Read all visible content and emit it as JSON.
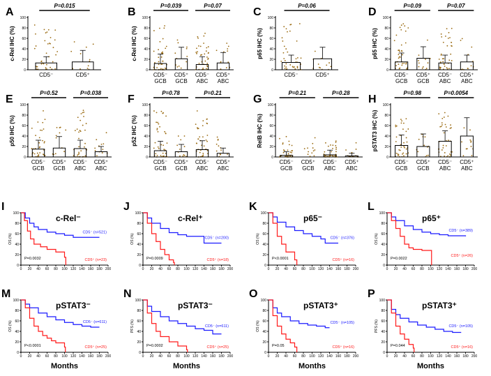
{
  "figure": {
    "x_axis_title": "Months",
    "colors": {
      "scatter": "#9a6a10",
      "cd5_neg": "#1a1aff",
      "cd5_pos": "#ff1a1a"
    }
  },
  "chart_data": [
    {
      "id": "A",
      "type": "bar",
      "panel_label": "A",
      "ylabel": "c-Rel IHC (%)",
      "categories": [
        "CD5⁻",
        "CD5⁺"
      ],
      "values": [
        13,
        15
      ],
      "sd": [
        12,
        22
      ],
      "ylim": [
        0,
        100
      ],
      "comparisons": [
        {
          "from": 0,
          "to": 1,
          "text": "P=0.015"
        }
      ]
    },
    {
      "id": "B",
      "type": "bar",
      "panel_label": "B",
      "ylabel": "c-Rel IHC (%)",
      "categories": [
        "CD5⁻ GCB",
        "CD5⁺ GCB",
        "CD5⁻ ABC",
        "CD5⁺ ABC"
      ],
      "values": [
        12,
        21,
        10,
        13
      ],
      "sd": [
        18,
        22,
        15,
        20
      ],
      "ylim": [
        0,
        100
      ],
      "comparisons": [
        {
          "from": 0,
          "to": 1,
          "text": "P=0.039"
        },
        {
          "from": 2,
          "to": 3,
          "text": "P=0.07"
        }
      ]
    },
    {
      "id": "C",
      "type": "bar",
      "panel_label": "C",
      "ylabel": "p65 IHC (%)",
      "categories": [
        "CD5⁻",
        "CD5⁺"
      ],
      "values": [
        14,
        21
      ],
      "sd": [
        14,
        22
      ],
      "ylim": [
        0,
        100
      ],
      "comparisons": [
        {
          "from": 0,
          "to": 1,
          "text": "P=0.06"
        }
      ]
    },
    {
      "id": "D",
      "type": "bar",
      "panel_label": "D",
      "ylabel": "p65 IHC (%)",
      "categories": [
        "CD5⁻ GCB",
        "CD5⁺ GCB",
        "CD5⁻ ABC",
        "CD5⁺ ABC"
      ],
      "values": [
        15,
        22,
        13,
        15
      ],
      "sd": [
        17,
        22,
        15,
        13
      ],
      "ylim": [
        0,
        100
      ],
      "comparisons": [
        {
          "from": 0,
          "to": 1,
          "text": "P=0.09"
        },
        {
          "from": 2,
          "to": 3,
          "text": "P=0.07"
        }
      ]
    },
    {
      "id": "E",
      "type": "bar",
      "panel_label": "E",
      "ylabel": "p50 IHC (%)",
      "categories": [
        "CD5⁻ GCB",
        "CD5⁺ GCB",
        "CD5⁻ ABC",
        "CD5⁺ ABC"
      ],
      "values": [
        15,
        17,
        16,
        10
      ],
      "sd": [
        17,
        22,
        16,
        10
      ],
      "ylim": [
        0,
        100
      ],
      "comparisons": [
        {
          "from": 0,
          "to": 1,
          "text": "P=0.52"
        },
        {
          "from": 2,
          "to": 3,
          "text": "P=0.038"
        }
      ]
    },
    {
      "id": "F",
      "type": "bar",
      "panel_label": "F",
      "ylabel": "p52 IHC (%)",
      "categories": [
        "CD5⁻ GCB",
        "CD5⁺ GCB",
        "CD5⁻ ABC",
        "CD5⁺ ABC"
      ],
      "values": [
        12,
        10,
        14,
        7
      ],
      "sd": [
        18,
        14,
        17,
        10
      ],
      "ylim": [
        0,
        100
      ],
      "comparisons": [
        {
          "from": 0,
          "to": 1,
          "text": "P=0.78"
        },
        {
          "from": 2,
          "to": 3,
          "text": "P=0.21"
        }
      ]
    },
    {
      "id": "G",
      "type": "bar",
      "panel_label": "G",
      "ylabel": "RelB IHC (%)",
      "categories": [
        "CD5⁻ GCB",
        "CD5⁺ GCB",
        "CD5⁻ ABC",
        "CD5⁺ ABC"
      ],
      "values": [
        3,
        0,
        4,
        2
      ],
      "sd": [
        7,
        0,
        9,
        5
      ],
      "ylim": [
        0,
        100
      ],
      "comparisons": [
        {
          "from": 0,
          "to": 1,
          "text": "P=0.21"
        },
        {
          "from": 2,
          "to": 3,
          "text": "P=0.28"
        }
      ]
    },
    {
      "id": "H",
      "type": "bar",
      "panel_label": "H",
      "ylabel": "pSTAT3 IHC (%)",
      "categories": [
        "CD5⁻ GCB",
        "CD5⁺ GCB",
        "CD5⁻ ABC",
        "CD5⁺ ABC"
      ],
      "values": [
        22,
        20,
        30,
        40
      ],
      "sd": [
        20,
        24,
        20,
        35
      ],
      "ylim": [
        0,
        100
      ],
      "comparisons": [
        {
          "from": 0,
          "to": 1,
          "text": "P=0.98"
        },
        {
          "from": 2,
          "to": 3,
          "text": "P=0.0054"
        }
      ]
    },
    {
      "id": "I",
      "type": "line",
      "panel_label": "I",
      "title": "c-Rel⁻",
      "ylabel": "OS (%)",
      "xlim": [
        0,
        200
      ],
      "ylim": [
        0,
        100
      ],
      "series": [
        {
          "name": "CD5⁻ (n=521)",
          "color": "#1a1aff",
          "x": [
            0,
            10,
            20,
            30,
            40,
            60,
            80,
            100,
            120,
            140,
            180
          ],
          "y": [
            100,
            90,
            80,
            73,
            68,
            63,
            60,
            57,
            53,
            53,
            53
          ]
        },
        {
          "name": "CD5⁺ (n=23)",
          "color": "#ff1a1a",
          "x": [
            0,
            8,
            15,
            22,
            30,
            45,
            60,
            80,
            100,
            103
          ],
          "y": [
            100,
            85,
            65,
            50,
            40,
            35,
            30,
            25,
            15,
            0
          ]
        }
      ],
      "p_value": "P=0.0032"
    },
    {
      "id": "J",
      "type": "line",
      "panel_label": "J",
      "title": "c-Rel⁺",
      "ylabel": "OS (%)",
      "xlim": [
        0,
        200
      ],
      "ylim": [
        0,
        100
      ],
      "series": [
        {
          "name": "CD5⁻ (n=200)",
          "color": "#1a1aff",
          "x": [
            0,
            10,
            20,
            40,
            60,
            80,
            100,
            120,
            140,
            150,
            180
          ],
          "y": [
            100,
            90,
            80,
            70,
            62,
            58,
            55,
            55,
            42,
            42,
            42
          ]
        },
        {
          "name": "CD5⁺ (n=18)",
          "color": "#ff1a1a",
          "x": [
            0,
            10,
            20,
            30,
            40,
            50,
            60,
            70,
            72
          ],
          "y": [
            100,
            80,
            60,
            45,
            30,
            20,
            10,
            5,
            0
          ]
        }
      ],
      "p_value": "P=0.0009"
    },
    {
      "id": "K",
      "type": "line",
      "panel_label": "K",
      "title": "p65⁻",
      "ylabel": "OS (%)",
      "xlim": [
        0,
        200
      ],
      "ylim": [
        0,
        100
      ],
      "series": [
        {
          "name": "CD5⁻ (n=376)",
          "color": "#1a1aff",
          "x": [
            0,
            10,
            20,
            40,
            60,
            80,
            100,
            120,
            130,
            160
          ],
          "y": [
            100,
            92,
            82,
            73,
            66,
            60,
            55,
            50,
            42,
            42
          ]
        },
        {
          "name": "CD5⁺ (n=16)",
          "color": "#ff1a1a",
          "x": [
            0,
            10,
            20,
            30,
            40,
            60,
            65
          ],
          "y": [
            100,
            80,
            55,
            40,
            25,
            10,
            0
          ]
        }
      ],
      "p_value": "P<0.0001"
    },
    {
      "id": "L",
      "type": "line",
      "panel_label": "L",
      "title": "p65⁺",
      "ylabel": "OS (%)",
      "xlim": [
        0,
        200
      ],
      "ylim": [
        0,
        100
      ],
      "series": [
        {
          "name": "CD5⁻ (n=389)",
          "color": "#1a1aff",
          "x": [
            0,
            10,
            20,
            40,
            60,
            80,
            100,
            120,
            140,
            180
          ],
          "y": [
            100,
            92,
            85,
            75,
            68,
            63,
            60,
            58,
            56,
            55
          ]
        },
        {
          "name": "CD5⁺ (n=26)",
          "color": "#ff1a1a",
          "x": [
            0,
            10,
            20,
            30,
            40,
            50,
            60,
            80,
            100,
            102
          ],
          "y": [
            100,
            85,
            70,
            55,
            40,
            33,
            30,
            28,
            28,
            0
          ]
        }
      ],
      "p_value": "P=0.0022"
    },
    {
      "id": "M",
      "type": "line",
      "panel_label": "M",
      "title": "pSTAT3⁻",
      "ylabel": "OS (%)",
      "xlim": [
        0,
        200
      ],
      "ylim": [
        0,
        100
      ],
      "series": [
        {
          "name": "CD5⁻ (n=611)",
          "color": "#1a1aff",
          "x": [
            0,
            10,
            20,
            40,
            60,
            80,
            100,
            120,
            140,
            160,
            180
          ],
          "y": [
            100,
            92,
            85,
            75,
            68,
            62,
            57,
            53,
            50,
            48,
            48
          ]
        },
        {
          "name": "CD5⁺ (n=25)",
          "color": "#ff1a1a",
          "x": [
            0,
            10,
            20,
            30,
            40,
            50,
            60,
            70,
            80,
            100,
            102
          ],
          "y": [
            100,
            85,
            65,
            50,
            40,
            32,
            27,
            22,
            18,
            10,
            0
          ]
        }
      ],
      "p_value": "P<0.0001"
    },
    {
      "id": "N",
      "type": "line",
      "panel_label": "N",
      "title": "pSTAT3⁻",
      "ylabel": "PFS (%)",
      "xlim": [
        0,
        200
      ],
      "ylim": [
        0,
        100
      ],
      "series": [
        {
          "name": "CD5⁻ (n=611)",
          "color": "#1a1aff",
          "x": [
            0,
            10,
            20,
            40,
            60,
            80,
            100,
            120,
            140,
            160,
            180
          ],
          "y": [
            100,
            88,
            78,
            68,
            60,
            55,
            50,
            45,
            42,
            35,
            35
          ]
        },
        {
          "name": "CD5⁺ (n=25)",
          "color": "#ff1a1a",
          "x": [
            0,
            10,
            20,
            30,
            40,
            60,
            80,
            100,
            102
          ],
          "y": [
            100,
            75,
            55,
            40,
            30,
            20,
            12,
            5,
            0
          ]
        }
      ],
      "p_value": "P=0.0002"
    },
    {
      "id": "O",
      "type": "line",
      "panel_label": "O",
      "title": "pSTAT3⁺",
      "ylabel": "OS (%)",
      "xlim": [
        0,
        200
      ],
      "ylim": [
        0,
        100
      ],
      "series": [
        {
          "name": "CD5⁻ (n=105)",
          "color": "#1a1aff",
          "x": [
            0,
            10,
            20,
            30,
            50,
            70,
            90,
            110,
            130,
            140
          ],
          "y": [
            100,
            85,
            75,
            68,
            60,
            55,
            52,
            50,
            47,
            47
          ]
        },
        {
          "name": "CD5⁺ (n=16)",
          "color": "#ff1a1a",
          "x": [
            0,
            10,
            20,
            30,
            40,
            50,
            60,
            65
          ],
          "y": [
            100,
            70,
            50,
            35,
            25,
            18,
            10,
            0
          ]
        }
      ],
      "p_value": "P=0.05"
    },
    {
      "id": "P",
      "type": "line",
      "panel_label": "P",
      "title": "pSTAT3⁺",
      "ylabel": "PFS (%)",
      "xlim": [
        0,
        200
      ],
      "ylim": [
        0,
        100
      ],
      "series": [
        {
          "name": "CD5⁻ (n=105)",
          "color": "#1a1aff",
          "x": [
            0,
            10,
            20,
            30,
            50,
            70,
            90,
            110,
            130,
            150,
            170
          ],
          "y": [
            100,
            82,
            72,
            65,
            58,
            52,
            48,
            44,
            40,
            38,
            38
          ]
        },
        {
          "name": "CD5⁺ (n=16)",
          "color": "#ff1a1a",
          "x": [
            0,
            10,
            20,
            30,
            40,
            50,
            60,
            62
          ],
          "y": [
            100,
            75,
            50,
            35,
            25,
            15,
            8,
            0
          ]
        }
      ],
      "p_value": "P=0.044"
    }
  ]
}
